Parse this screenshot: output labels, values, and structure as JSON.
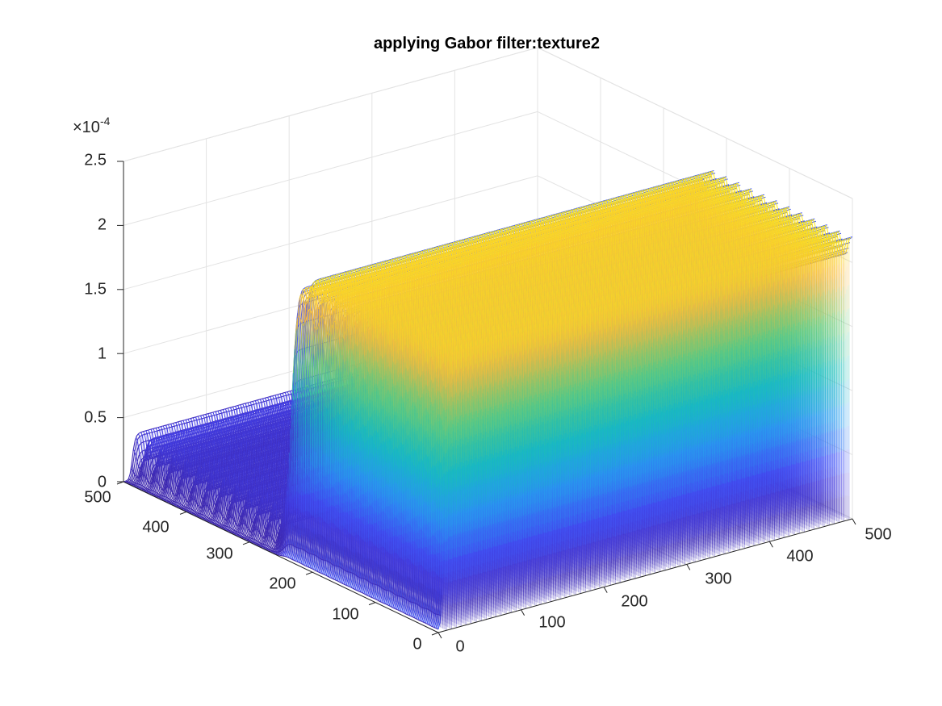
{
  "chart_data": {
    "type": "surface",
    "title": "applying Gabor filter:texture2",
    "xlabel": "",
    "ylabel": "",
    "zlabel": "",
    "x_ticks": [
      "0",
      "100",
      "200",
      "300",
      "400",
      "500"
    ],
    "y_ticks": [
      "0",
      "100",
      "200",
      "300",
      "400",
      "500"
    ],
    "z_ticks": [
      "0",
      "0.5",
      "1",
      "1.5",
      "2",
      "2.5"
    ],
    "z_exponent": "×10",
    "z_exponent_power": "-4",
    "xlim": [
      0,
      500
    ],
    "ylim": [
      0,
      500
    ],
    "zlim": [
      0,
      2.5
    ],
    "z_scale": 0.0001,
    "grid": true,
    "colormap": "parula",
    "colormap_stops": [
      "#3e26a8",
      "#4646f5",
      "#2b9bf4",
      "#17bfbc",
      "#6ccc79",
      "#fbb840",
      "#f9fb0e"
    ],
    "surface_description_values": {
      "plateau_region_y": [
        0,
        250
      ],
      "plateau_region_x": [
        5,
        500
      ],
      "plateau_peak": 2.2,
      "low_region_y": [
        250,
        500
      ],
      "low_region_peak": 0.35,
      "ripple_period": 20
    }
  },
  "colors": {
    "axis": "#262626",
    "grid": "#e3e3e3",
    "background": "#ffffff"
  }
}
